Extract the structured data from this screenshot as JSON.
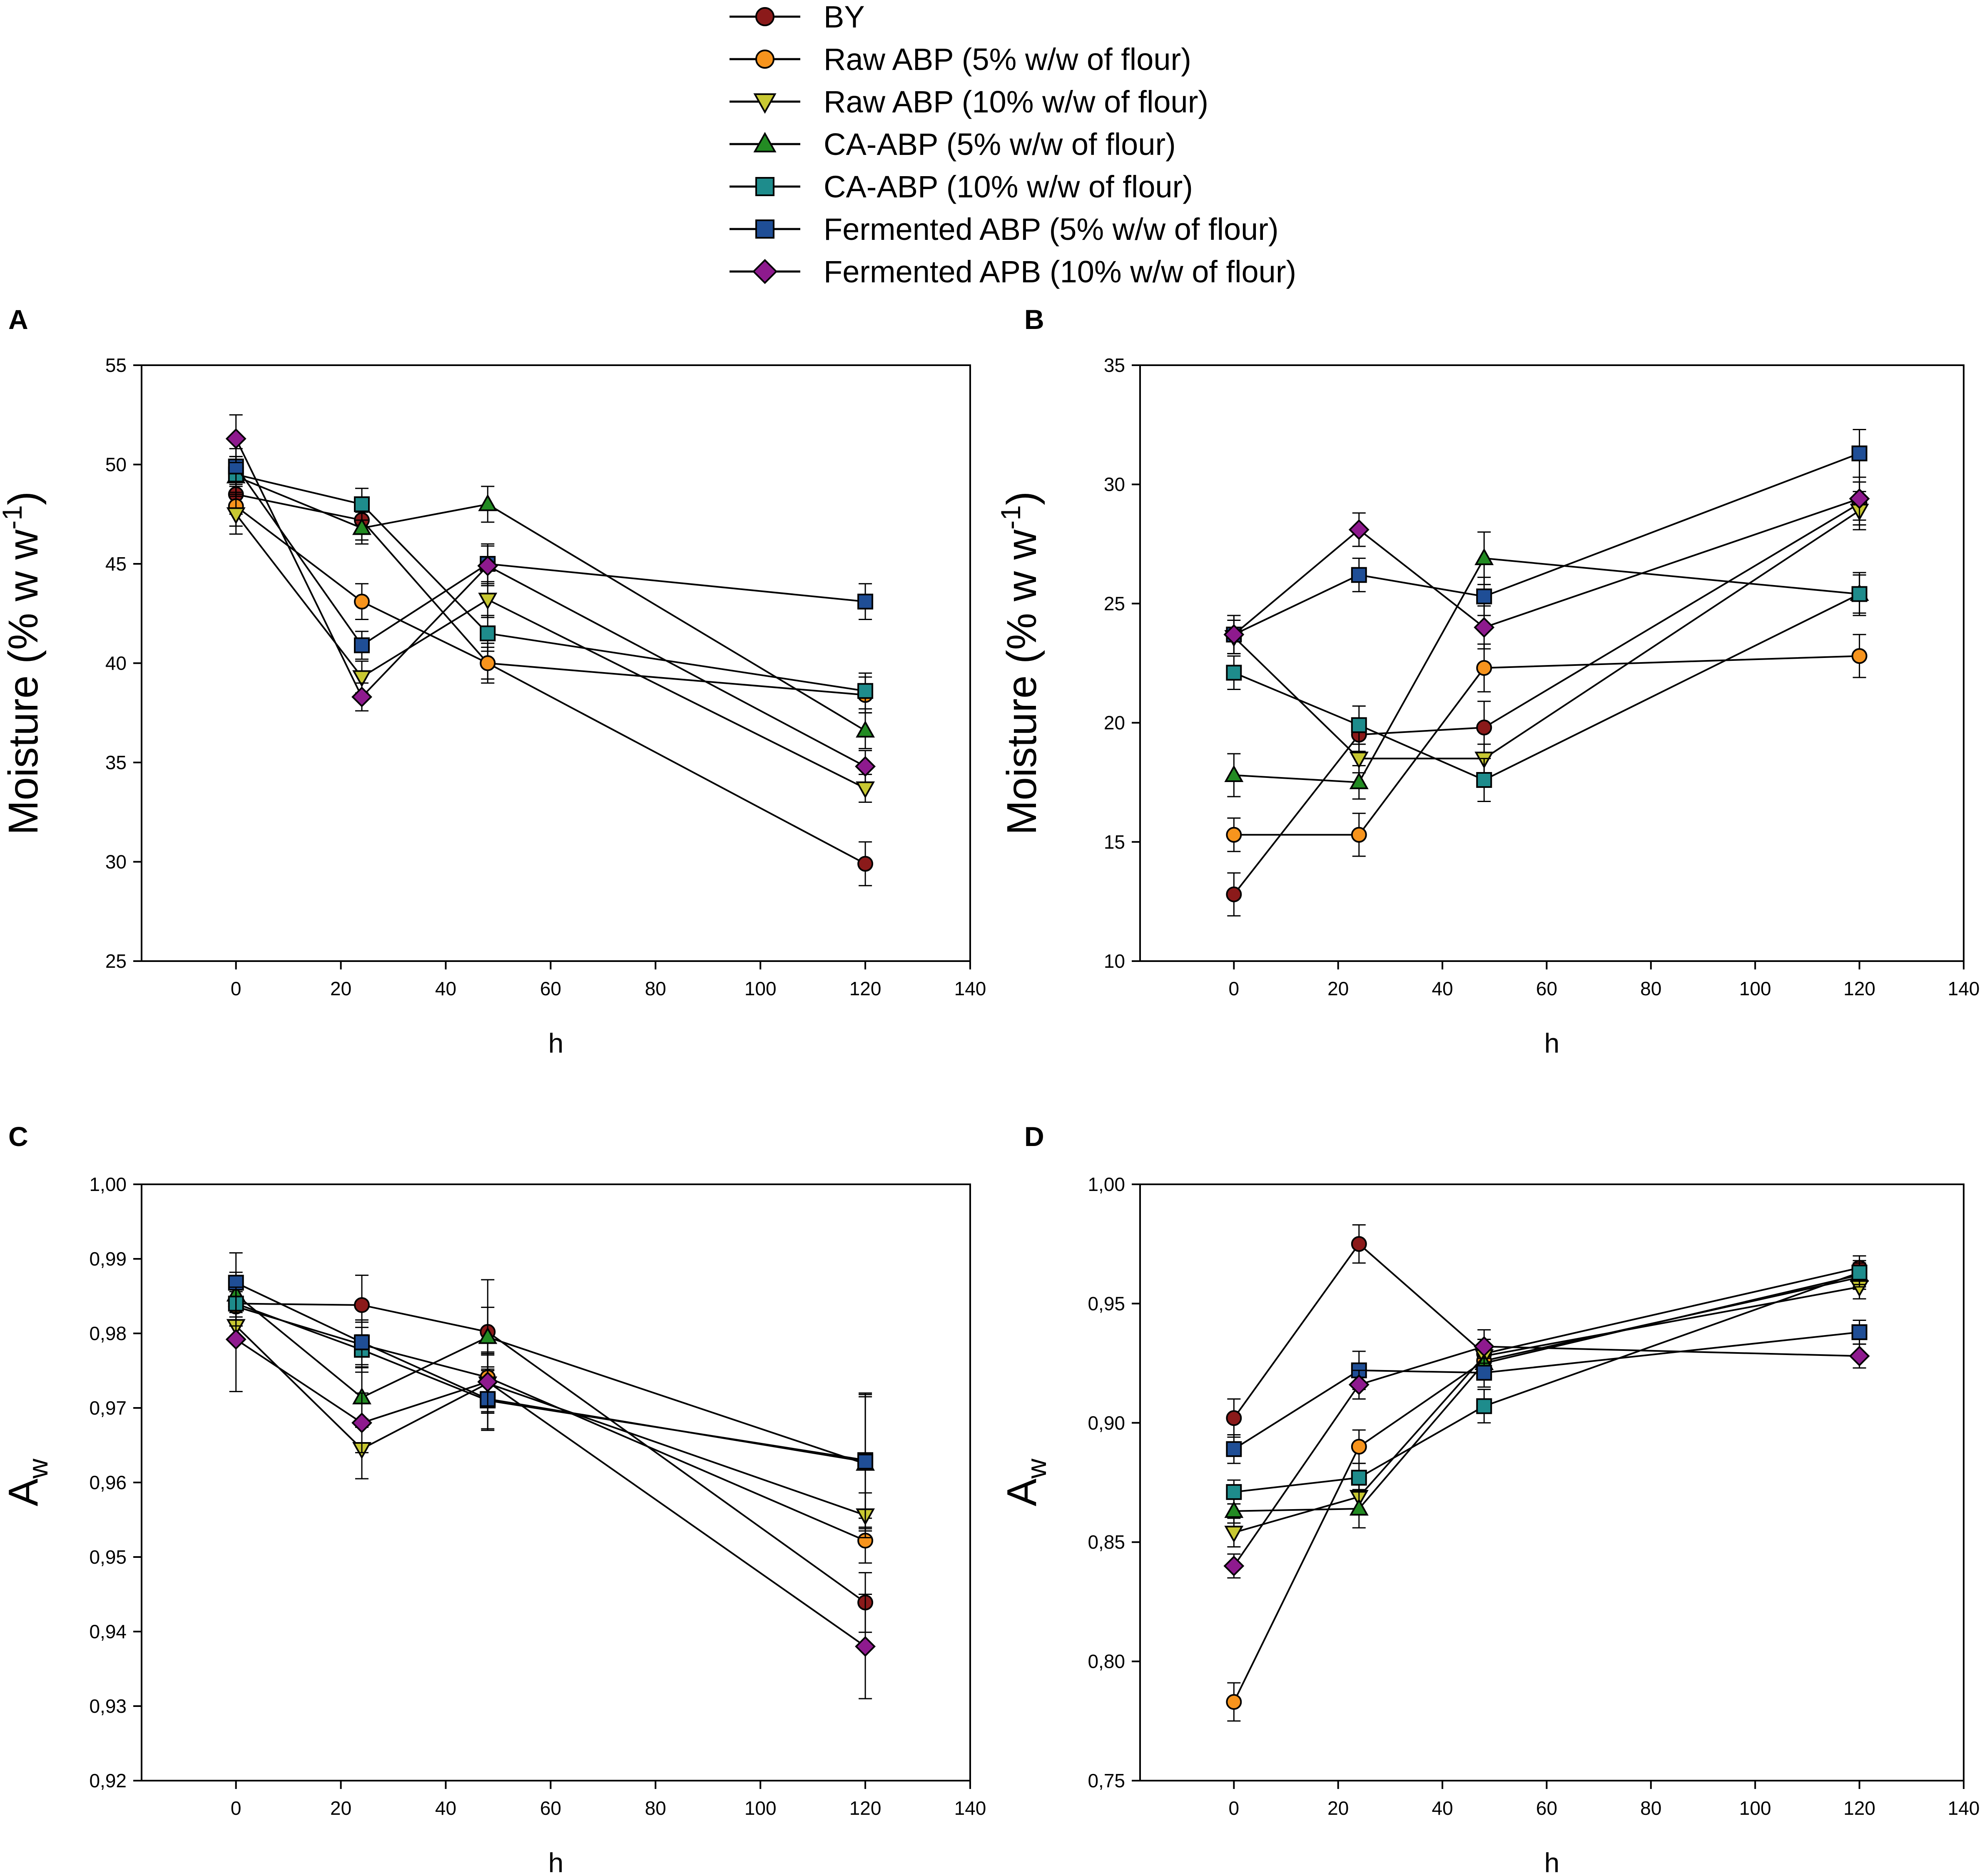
{
  "legend": [
    {
      "name": "BY",
      "marker": "circle",
      "color": "#8B1A1A"
    },
    {
      "name": "Raw ABP  (5% w/w of flour)",
      "marker": "circle",
      "color": "#F7941D"
    },
    {
      "name": "Raw ABP  (10% w/w of flour)",
      "marker": "triangle-down",
      "color": "#C8C832"
    },
    {
      "name": "CA-ABP (5% w/w of flour)",
      "marker": "triangle-up",
      "color": "#238B23"
    },
    {
      "name": "CA-ABP (10% w/w of flour)",
      "marker": "square",
      "color": "#1E8C8C"
    },
    {
      "name": "Fermented ABP  (5% w/w of flour)",
      "marker": "square",
      "color": "#1F4E96"
    },
    {
      "name": "Fermented APB  (10% w/w of flour)",
      "marker": "diamond",
      "color": "#8E1A8E"
    }
  ],
  "chart_data": [
    {
      "panel": "A",
      "type": "line",
      "xlabel": "h",
      "ylabel_main": "Moisture (% w w",
      "ylabel_sup": "-1",
      "ylabel_end": ")",
      "ylabel_sub": "",
      "xlim": [
        -18,
        140
      ],
      "ylim": [
        25,
        55
      ],
      "xticks": [
        0,
        20,
        40,
        60,
        80,
        100,
        120,
        140
      ],
      "xtick_labels": [
        "0",
        "20",
        "40",
        "60",
        "80",
        "100",
        "120",
        "140"
      ],
      "yticks": [
        25,
        30,
        35,
        40,
        45,
        50,
        55
      ],
      "ytick_labels": [
        "25",
        "30",
        "35",
        "40",
        "45",
        "50",
        "55"
      ],
      "x": [
        0,
        24,
        48,
        120
      ],
      "series": [
        {
          "name": "BY",
          "values": [
            48.5,
            47.2,
            40.0,
            29.9
          ],
          "errors": [
            1.0,
            1.0,
            1.0,
            1.1
          ]
        },
        {
          "name": "Raw ABP  (5% w/w of flour)",
          "values": [
            47.9,
            43.1,
            40.0,
            38.4
          ],
          "errors": [
            1.0,
            0.9,
            0.8,
            0.9
          ]
        },
        {
          "name": "Raw ABP  (10% w/w of flour)",
          "values": [
            47.5,
            39.3,
            43.2,
            33.7
          ],
          "errors": [
            1.0,
            0.8,
            0.9,
            0.7
          ]
        },
        {
          "name": "CA-ABP (5% w/w of flour)",
          "values": [
            49.4,
            46.8,
            48.0,
            36.6
          ],
          "errors": [
            1.0,
            0.8,
            0.9,
            0.9
          ]
        },
        {
          "name": "CA-ABP (10% w/w of flour)",
          "values": [
            49.5,
            48.0,
            41.5,
            38.6
          ],
          "errors": [
            0.9,
            0.8,
            0.9,
            0.9
          ]
        },
        {
          "name": "Fermented ABP  (5% w/w of flour)",
          "values": [
            49.9,
            40.9,
            45.0,
            43.1
          ],
          "errors": [
            0.9,
            0.7,
            1.0,
            0.9
          ]
        },
        {
          "name": "Fermented APB  (10% w/w of flour)",
          "values": [
            51.3,
            38.3,
            44.9,
            34.8
          ],
          "errors": [
            1.2,
            0.7,
            1.0,
            0.8
          ]
        }
      ]
    },
    {
      "panel": "B",
      "type": "line",
      "xlabel": "h",
      "ylabel_main": "Moisture (% w w",
      "ylabel_sup": "-1",
      "ylabel_end": ")",
      "ylabel_sub": "",
      "xlim": [
        -18,
        140
      ],
      "ylim": [
        10,
        35
      ],
      "xticks": [
        0,
        20,
        40,
        60,
        80,
        100,
        120,
        140
      ],
      "xtick_labels": [
        "0",
        "20",
        "40",
        "60",
        "80",
        "100",
        "120",
        "140"
      ],
      "yticks": [
        10,
        15,
        20,
        25,
        30,
        35
      ],
      "ytick_labels": [
        "10",
        "15",
        "20",
        "25",
        "30",
        "35"
      ],
      "x": [
        0,
        24,
        48,
        120
      ],
      "series": [
        {
          "name": "BY",
          "values": [
            12.8,
            19.5,
            19.8,
            29.2
          ],
          "errors": [
            0.9,
            0.7,
            1.1,
            0.9
          ]
        },
        {
          "name": "Raw ABP  (5% w/w of flour)",
          "values": [
            15.3,
            15.3,
            22.3,
            22.8
          ],
          "errors": [
            0.7,
            0.9,
            1.0,
            0.9
          ]
        },
        {
          "name": "Raw ABP  (10% w/w of flour)",
          "values": [
            23.6,
            18.5,
            18.5,
            28.9
          ],
          "errors": [
            0.7,
            0.6,
            0.6,
            0.8
          ]
        },
        {
          "name": "CA-ABP (5% w/w of flour)",
          "values": [
            17.8,
            17.5,
            26.9,
            25.4
          ],
          "errors": [
            0.9,
            0.7,
            1.1,
            0.8
          ]
        },
        {
          "name": "CA-ABP (10% w/w of flour)",
          "values": [
            22.1,
            19.9,
            17.6,
            25.4
          ],
          "errors": [
            0.7,
            0.8,
            0.9,
            0.9
          ]
        },
        {
          "name": "Fermented ABP  (5% w/w of flour)",
          "values": [
            23.7,
            26.2,
            25.3,
            31.3
          ],
          "errors": [
            0.8,
            0.7,
            0.8,
            1.0
          ]
        },
        {
          "name": "Fermented APB  (10% w/w of flour)",
          "values": [
            23.7,
            28.1,
            24.0,
            29.4
          ],
          "errors": [
            0.8,
            0.7,
            0.9,
            0.9
          ]
        }
      ]
    },
    {
      "panel": "C",
      "type": "line",
      "xlabel": "h",
      "ylabel_main": "A",
      "ylabel_sup": "",
      "ylabel_end": "",
      "ylabel_sub": "w",
      "xlim": [
        -18,
        140
      ],
      "ylim": [
        0.92,
        1.0
      ],
      "xticks": [
        0,
        20,
        40,
        60,
        80,
        100,
        120,
        140
      ],
      "xtick_labels": [
        "0",
        "20",
        "40",
        "60",
        "80",
        "100",
        "120",
        "140"
      ],
      "yticks": [
        0.92,
        0.93,
        0.94,
        0.95,
        0.96,
        0.97,
        0.98,
        0.99,
        1.0
      ],
      "ytick_labels": [
        "0,92",
        "0,93",
        "0,94",
        "0,95",
        "0,96",
        "0,97",
        "0,98",
        "0,99",
        "1,00"
      ],
      "x": [
        0,
        24,
        48,
        120
      ],
      "series": [
        {
          "name": "BY",
          "values": [
            0.984,
            0.9838,
            0.9802,
            0.9439
          ],
          "errors": [
            0.003,
            0.004,
            0.007,
            0.004
          ]
        },
        {
          "name": "Raw ABP  (5% w/w of flour)",
          "values": [
            0.9836,
            0.9785,
            0.9741,
            0.9522
          ],
          "errors": [
            0.002,
            0.003,
            0.003,
            0.003
          ]
        },
        {
          "name": "Raw ABP  (10% w/w of flour)",
          "values": [
            0.981,
            0.9645,
            0.9733,
            0.9556
          ],
          "errors": [
            0.002,
            0.004,
            0.004,
            0.003
          ]
        },
        {
          "name": "CA-ABP (5% w/w of flour)",
          "values": [
            0.9852,
            0.9714,
            0.9795,
            0.9625
          ],
          "errors": [
            0.003,
            0.004,
            0.004,
            0.009
          ]
        },
        {
          "name": "CA-ABP (10% w/w of flour)",
          "values": [
            0.984,
            0.9778,
            0.971,
            0.963
          ],
          "errors": [
            0.003,
            0.003,
            0.004,
            0.009
          ]
        },
        {
          "name": "Fermented ABP  (5% w/w of flour)",
          "values": [
            0.9868,
            0.9788,
            0.9712,
            0.9628
          ],
          "errors": [
            0.004,
            0.003,
            0.004,
            0.009
          ]
        },
        {
          "name": "Fermented APB  (10% w/w of flour)",
          "values": [
            0.9792,
            0.968,
            0.9735,
            0.938
          ],
          "errors": [
            0.007,
            0.004,
            0.004,
            0.007
          ]
        }
      ]
    },
    {
      "panel": "D",
      "type": "line",
      "xlabel": "h",
      "ylabel_main": "A",
      "ylabel_sup": "",
      "ylabel_end": "",
      "ylabel_sub": "w",
      "xlim": [
        -18,
        140
      ],
      "ylim": [
        0.75,
        1.0
      ],
      "xticks": [
        0,
        20,
        40,
        60,
        80,
        100,
        120,
        140
      ],
      "xtick_labels": [
        "0",
        "20",
        "40",
        "60",
        "80",
        "100",
        "120",
        "140"
      ],
      "yticks": [
        0.75,
        0.8,
        0.85,
        0.9,
        0.95,
        1.0
      ],
      "ytick_labels": [
        "0,75",
        "0,80",
        "0,85",
        "0,90",
        "0,95",
        "1,00"
      ],
      "x": [
        0,
        24,
        48,
        120
      ],
      "series": [
        {
          "name": "BY",
          "values": [
            0.902,
            0.975,
            0.929,
            0.965
          ],
          "errors": [
            0.008,
            0.008,
            0.006,
            0.005
          ]
        },
        {
          "name": "Raw ABP  (5% w/w of flour)",
          "values": [
            0.783,
            0.89,
            0.926,
            0.961
          ],
          "errors": [
            0.008,
            0.007,
            0.007,
            0.005
          ]
        },
        {
          "name": "Raw ABP  (10% w/w of flour)",
          "values": [
            0.854,
            0.869,
            0.928,
            0.957
          ],
          "errors": [
            0.006,
            0.007,
            0.007,
            0.005
          ]
        },
        {
          "name": "CA-ABP (5% w/w of flour)",
          "values": [
            0.863,
            0.864,
            0.925,
            0.962
          ],
          "errors": [
            0.005,
            0.008,
            0.007,
            0.005
          ]
        },
        {
          "name": "CA-ABP (10% w/w of flour)",
          "values": [
            0.871,
            0.877,
            0.907,
            0.963
          ],
          "errors": [
            0.005,
            0.006,
            0.007,
            0.005
          ]
        },
        {
          "name": "Fermented ABP  (5% w/w of flour)",
          "values": [
            0.889,
            0.922,
            0.921,
            0.938
          ],
          "errors": [
            0.006,
            0.008,
            0.006,
            0.005
          ]
        },
        {
          "name": "Fermented APB  (10% w/w of flour)",
          "values": [
            0.84,
            0.916,
            0.932,
            0.928
          ],
          "errors": [
            0.005,
            0.006,
            0.007,
            0.005
          ]
        }
      ]
    }
  ]
}
